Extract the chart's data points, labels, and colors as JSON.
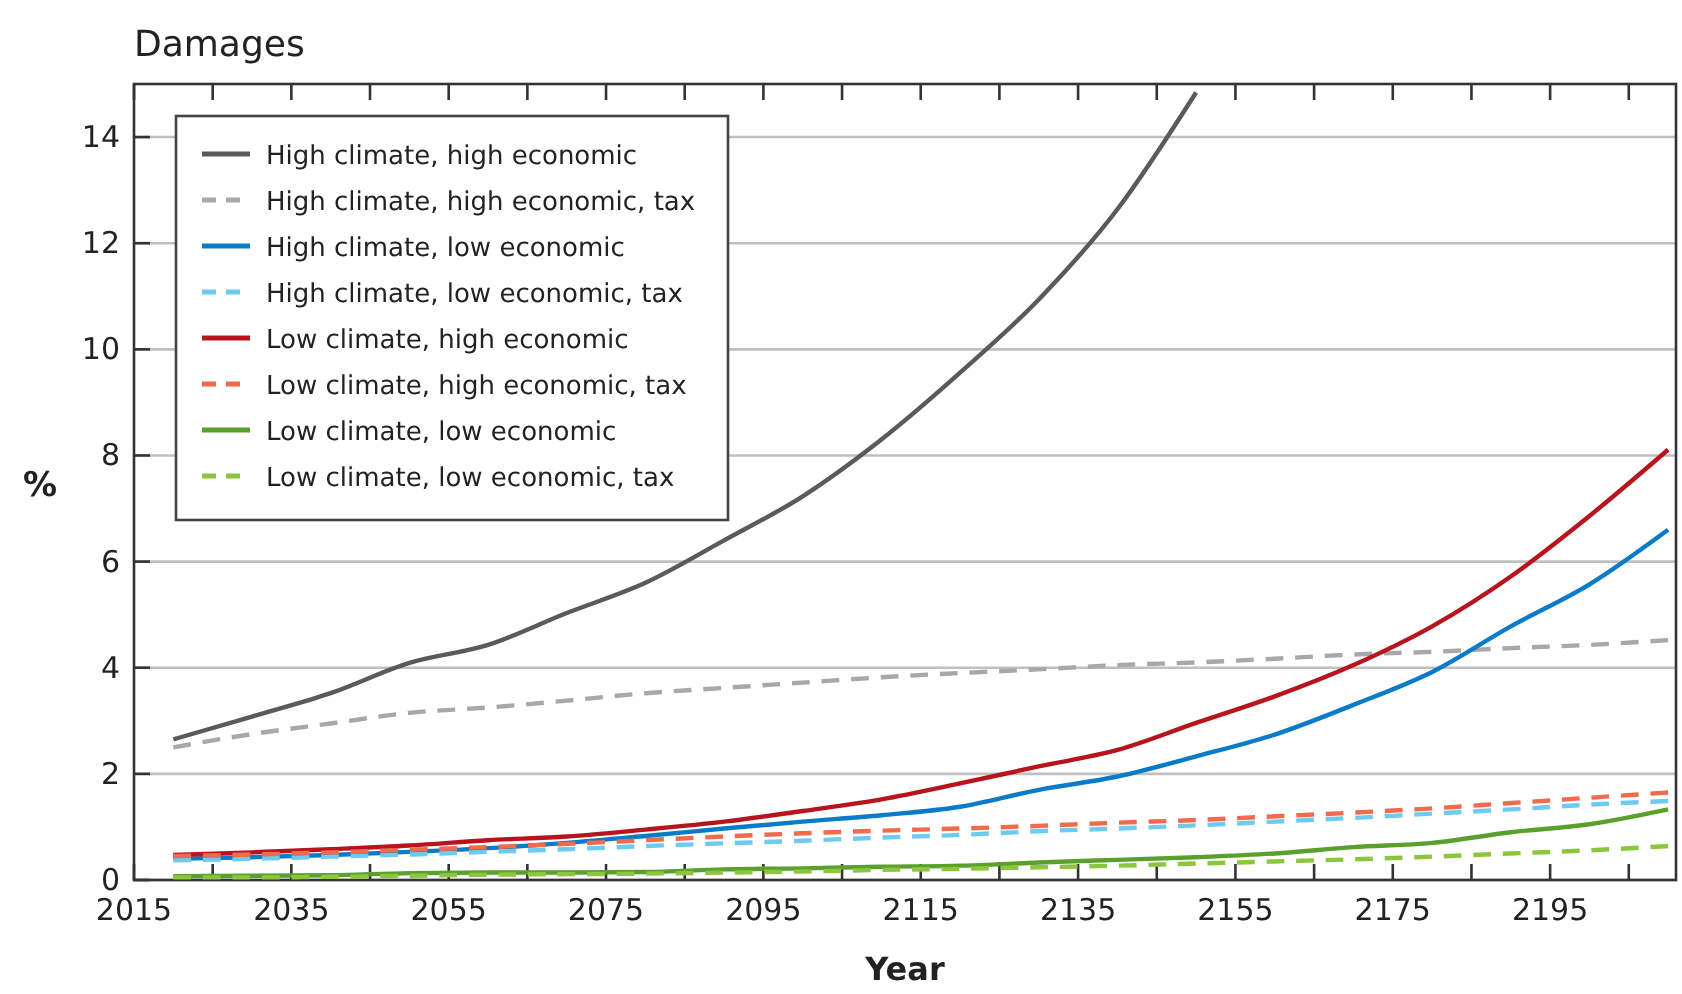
{
  "chart_data": {
    "type": "line",
    "title": "Damages",
    "xlabel": "Year",
    "ylabel": "%",
    "x": [
      2020,
      2030,
      2040,
      2050,
      2060,
      2070,
      2080,
      2090,
      2100,
      2110,
      2120,
      2130,
      2140,
      2150,
      2160,
      2170,
      2180,
      2190,
      2200,
      2210
    ],
    "xlim": [
      2015,
      2211
    ],
    "xticks": [
      2015,
      {
        "value": 2025,
        "label": null
      },
      2035,
      {
        "value": 2045,
        "label": null
      },
      2055,
      {
        "value": 2065,
        "label": null
      },
      2075,
      {
        "value": 2085,
        "label": null
      },
      2095,
      {
        "value": 2105,
        "label": null
      },
      2115,
      {
        "value": 2125,
        "label": null
      },
      2135,
      {
        "value": 2145,
        "label": null
      },
      2155,
      {
        "value": 2165,
        "label": null
      },
      2175,
      {
        "value": 2185,
        "label": null
      },
      2195,
      {
        "value": 2205,
        "label": null
      }
    ],
    "ylim": [
      0,
      15
    ],
    "yticks": [
      0,
      2,
      4,
      6,
      8,
      10,
      12,
      14
    ],
    "grid": "y",
    "legend": "top left",
    "series": [
      {
        "name": "High climate, high economic",
        "color": "#5a5a5a",
        "line_style": "solid",
        "values": [
          2.65,
          3.08,
          3.52,
          4.09,
          4.43,
          5.03,
          5.6,
          6.4,
          7.23,
          8.3,
          9.56,
          10.94,
          12.64,
          14.84,
          null,
          null,
          null,
          null,
          null,
          null
        ]
      },
      {
        "name": "High climate, high economic, tax",
        "color": "#a8a8aa",
        "line_style": "dashed",
        "values": [
          2.5,
          2.75,
          2.95,
          3.15,
          3.25,
          3.38,
          3.52,
          3.62,
          3.72,
          3.82,
          3.9,
          3.97,
          4.05,
          4.1,
          4.17,
          4.25,
          4.3,
          4.37,
          4.43,
          4.52
        ]
      },
      {
        "name": "High climate, low economic",
        "color": "#0a7bc8",
        "line_style": "solid",
        "values": [
          0.4,
          0.43,
          0.47,
          0.53,
          0.6,
          0.7,
          0.83,
          0.97,
          1.1,
          1.22,
          1.38,
          1.7,
          1.95,
          2.33,
          2.74,
          3.3,
          3.92,
          4.78,
          5.57,
          6.6
        ]
      },
      {
        "name": "High climate, low economic, tax",
        "color": "#6ecbf0",
        "line_style": "dashed",
        "values": [
          0.37,
          0.4,
          0.44,
          0.48,
          0.53,
          0.58,
          0.64,
          0.69,
          0.74,
          0.8,
          0.85,
          0.92,
          0.97,
          1.03,
          1.1,
          1.17,
          1.25,
          1.33,
          1.42,
          1.49
        ]
      },
      {
        "name": "Low climate, high economic",
        "color": "#b8141e",
        "line_style": "solid",
        "values": [
          0.47,
          0.52,
          0.58,
          0.65,
          0.75,
          0.82,
          0.95,
          1.1,
          1.3,
          1.52,
          1.82,
          2.14,
          2.45,
          2.96,
          3.46,
          4.05,
          4.78,
          5.72,
          6.86,
          8.11
        ]
      },
      {
        "name": "Low climate, high economic, tax",
        "color": "#f06a4e",
        "line_style": "dashed",
        "values": [
          0.45,
          0.48,
          0.52,
          0.57,
          0.62,
          0.68,
          0.75,
          0.82,
          0.88,
          0.93,
          0.97,
          1.02,
          1.08,
          1.13,
          1.2,
          1.27,
          1.35,
          1.45,
          1.55,
          1.65
        ]
      },
      {
        "name": "Low climate, low economic",
        "color": "#5aa02c",
        "line_style": "solid",
        "values": [
          0.07,
          0.08,
          0.09,
          0.13,
          0.14,
          0.14,
          0.15,
          0.2,
          0.22,
          0.25,
          0.27,
          0.33,
          0.38,
          0.43,
          0.5,
          0.62,
          0.7,
          0.9,
          1.05,
          1.33
        ]
      },
      {
        "name": "Low climate, low economic, tax",
        "color": "#8cc63e",
        "line_style": "dashed",
        "values": [
          0.05,
          0.05,
          0.06,
          0.08,
          0.1,
          0.11,
          0.12,
          0.14,
          0.16,
          0.19,
          0.21,
          0.24,
          0.27,
          0.31,
          0.35,
          0.39,
          0.44,
          0.5,
          0.56,
          0.64
        ]
      }
    ]
  }
}
